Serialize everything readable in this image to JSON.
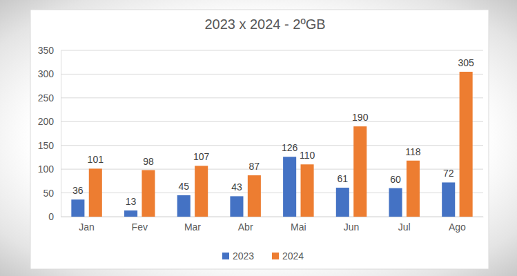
{
  "chart_data": {
    "type": "bar",
    "title": "2023 x 2024 - 2ºGB",
    "categories": [
      "Jan",
      "Fev",
      "Mar",
      "Abr",
      "Mai",
      "Jun",
      "Jul",
      "Ago"
    ],
    "series": [
      {
        "name": "2023",
        "color": "#4472c4",
        "values": [
          36,
          13,
          45,
          43,
          126,
          61,
          60,
          72
        ]
      },
      {
        "name": "2024",
        "color": "#ed7d31",
        "values": [
          101,
          98,
          107,
          87,
          110,
          190,
          118,
          305
        ]
      }
    ],
    "ylim": [
      0,
      350
    ],
    "yticks": [
      0,
      50,
      100,
      150,
      200,
      250,
      300,
      350
    ],
    "grid": true,
    "data_labels": true,
    "legend": "bottom"
  }
}
